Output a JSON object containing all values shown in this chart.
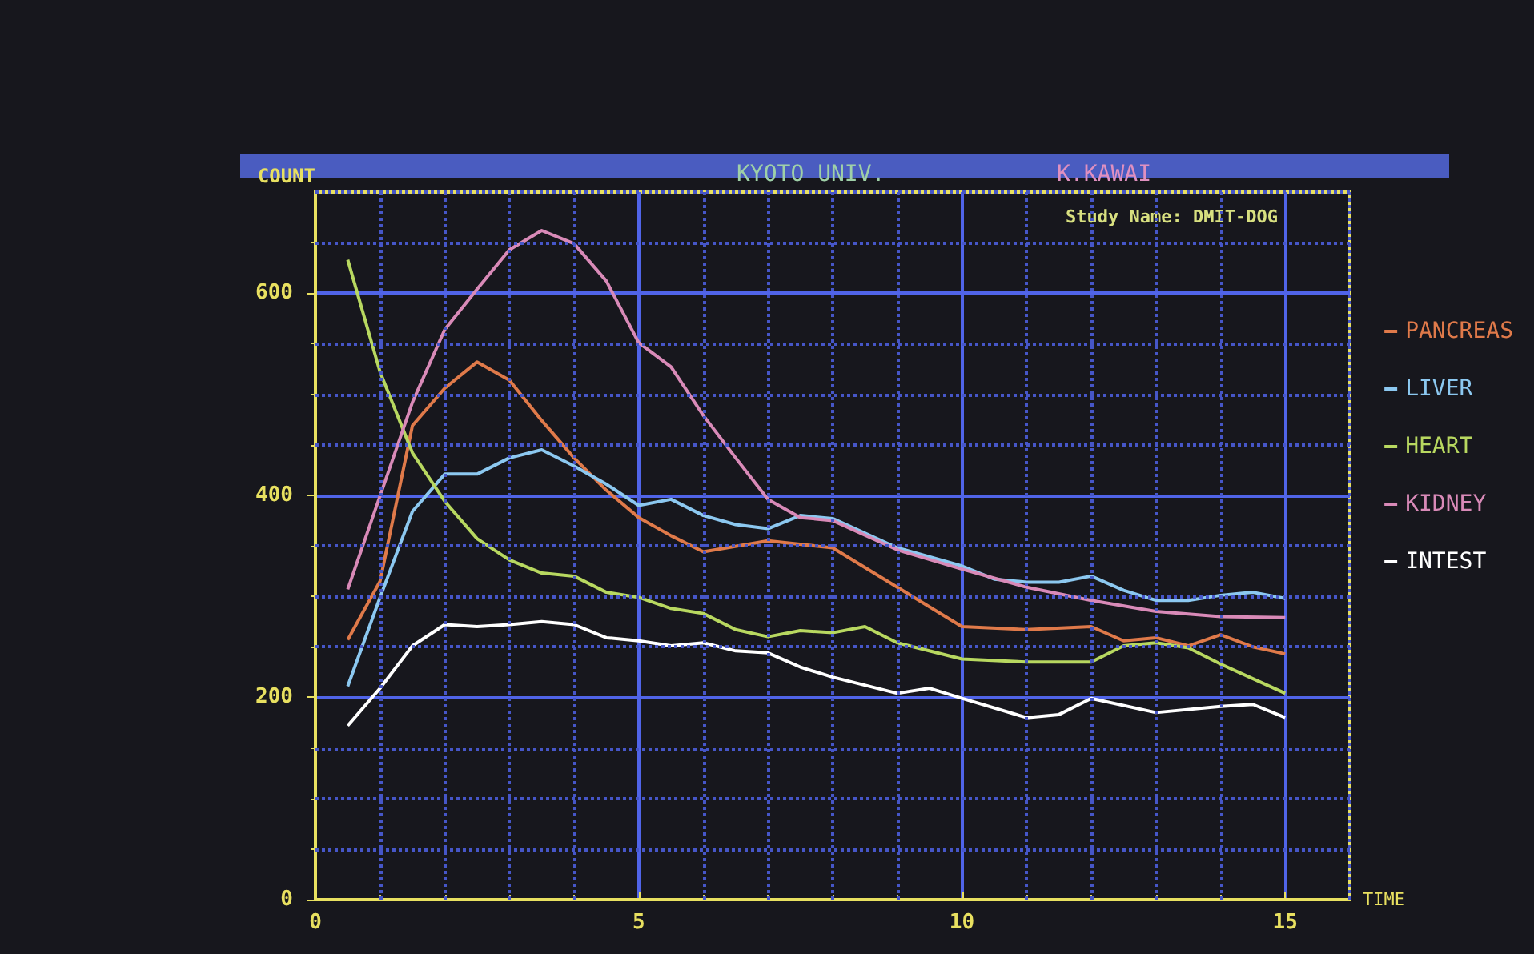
{
  "chart_data": {
    "type": "line",
    "title": "KYOTO UNIV.",
    "subtitle": "K.KAWAI",
    "xlabel": "TIME",
    "ylabel": "COUNT",
    "annotations": [
      "Study Name: DMIT-DOG"
    ],
    "xlim": [
      0,
      16
    ],
    "ylim": [
      0,
      700
    ],
    "xticks": [
      0,
      {
        "value": 1,
        "label": null
      },
      {
        "value": 2,
        "label": null
      },
      {
        "value": 3,
        "label": null
      },
      {
        "value": 4,
        "label": null
      },
      5,
      {
        "value": 6,
        "label": null
      },
      {
        "value": 7,
        "label": null
      },
      {
        "value": 8,
        "label": null
      },
      {
        "value": 9,
        "label": null
      },
      10,
      {
        "value": 11,
        "label": null
      },
      {
        "value": 12,
        "label": null
      },
      {
        "value": 13,
        "label": null
      },
      {
        "value": 14,
        "label": null
      },
      15,
      {
        "value": 16,
        "label": null
      }
    ],
    "yticks": [
      0,
      {
        "value": 50,
        "label": null
      },
      {
        "value": 100,
        "label": null
      },
      {
        "value": 150,
        "label": null
      },
      200,
      {
        "value": 250,
        "label": null
      },
      {
        "value": 300,
        "label": null
      },
      {
        "value": 350,
        "label": null
      },
      400,
      {
        "value": 450,
        "label": null
      },
      {
        "value": 500,
        "label": null
      },
      {
        "value": 550,
        "label": null
      },
      600,
      {
        "value": 650,
        "label": null
      },
      {
        "value": 700,
        "label": null
      }
    ],
    "grid": true,
    "legend": "right",
    "marker": "none",
    "line_style": "solid",
    "series": [
      {
        "name": "PANCREAS",
        "color": "#e07a4a",
        "x": [
          0.5,
          1,
          1.5,
          2,
          2.5,
          3,
          3.5,
          4,
          4.5,
          5,
          5.5,
          6,
          7,
          8,
          9,
          10,
          11,
          12,
          12.5,
          13,
          13.5,
          14,
          14.5,
          15
        ],
        "values": [
          257,
          315,
          469,
          506,
          532,
          514,
          474,
          437,
          405,
          378,
          360,
          344,
          355,
          348,
          309,
          270,
          267,
          270,
          256,
          259,
          251,
          262,
          250,
          243
        ]
      },
      {
        "name": "LIVER",
        "color": "#8cc8f0",
        "x": [
          0.5,
          1,
          1.5,
          2,
          2.5,
          3,
          3.5,
          4,
          4.5,
          5,
          5.5,
          6,
          6.5,
          7,
          7.5,
          8,
          9,
          10,
          10.5,
          11,
          11.5,
          12,
          12.5,
          13,
          13.5,
          14,
          14.5,
          15
        ],
        "values": [
          211,
          299,
          384,
          421,
          421,
          437,
          445,
          429,
          411,
          390,
          396,
          380,
          371,
          367,
          380,
          377,
          348,
          330,
          317,
          314,
          314,
          320,
          306,
          296,
          296,
          301,
          304,
          298
        ]
      },
      {
        "name": "HEART",
        "color": "#b8d860",
        "x": [
          0.5,
          1,
          1.5,
          2,
          2.5,
          3,
          3.5,
          4,
          4.5,
          5,
          5.5,
          6,
          6.5,
          7,
          7.5,
          8,
          8.5,
          9,
          10,
          11,
          12,
          12.5,
          13,
          13.5,
          14,
          15
        ],
        "values": [
          633,
          522,
          442,
          394,
          357,
          336,
          323,
          320,
          304,
          299,
          288,
          283,
          267,
          260,
          266,
          264,
          270,
          254,
          238,
          235,
          235,
          251,
          254,
          249,
          233,
          204
        ]
      },
      {
        "name": "KIDNEY",
        "color": "#d98ab8",
        "x": [
          0.5,
          1.5,
          2,
          2.5,
          3,
          3.5,
          4,
          4.5,
          5,
          5.5,
          6,
          6.5,
          7,
          7.5,
          8,
          9,
          10,
          11,
          12,
          13,
          14,
          15
        ],
        "values": [
          307,
          492,
          564,
          604,
          643,
          662,
          649,
          612,
          551,
          527,
          479,
          437,
          396,
          378,
          375,
          346,
          327,
          309,
          296,
          285,
          280,
          279
        ]
      },
      {
        "name": "INTEST",
        "color": "#ffffff",
        "x": [
          0.5,
          1,
          1.5,
          2,
          2.5,
          3,
          3.5,
          4,
          4.5,
          5,
          5.5,
          6,
          6.5,
          7,
          7.5,
          8,
          9,
          9.5,
          10,
          11,
          11.5,
          12,
          13,
          14,
          14.5,
          15
        ],
        "values": [
          172,
          209,
          251,
          272,
          270,
          272,
          275,
          272,
          259,
          256,
          251,
          254,
          246,
          244,
          230,
          220,
          204,
          209,
          199,
          180,
          183,
          199,
          185,
          191,
          193,
          180
        ]
      }
    ]
  }
}
